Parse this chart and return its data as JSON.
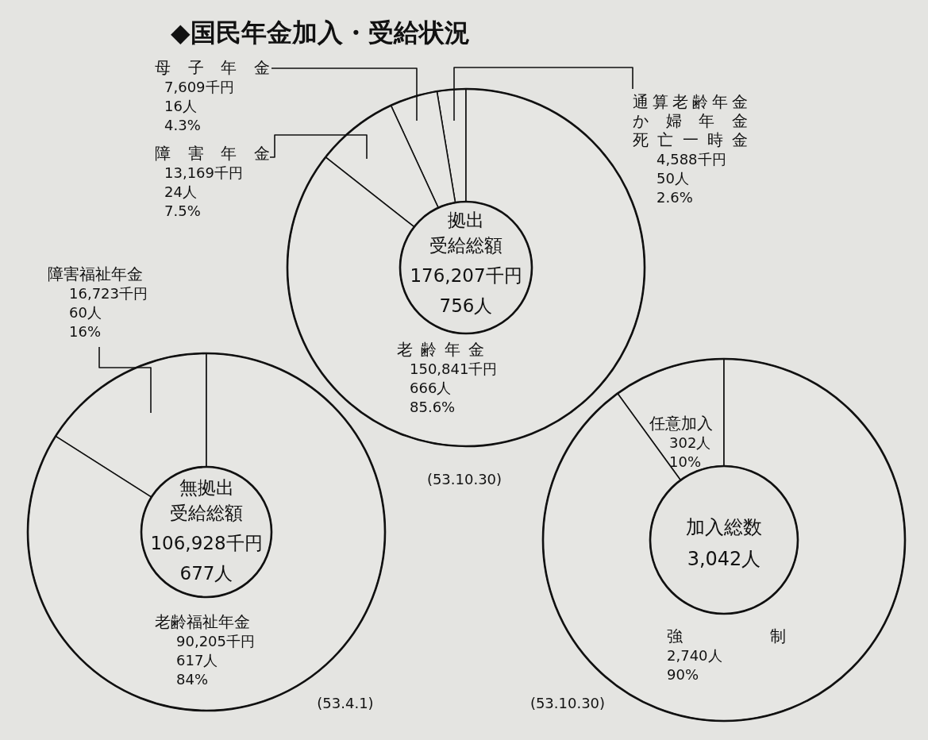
{
  "chart_data": [
    {
      "type": "donut",
      "title": "◆国民年金加入・受給状況",
      "categories": [
        "通算老齢年金か婦年金死亡一時金",
        "母子年金",
        "障害年金",
        "老齢年金"
      ],
      "values": [
        2.6,
        4.3,
        7.5,
        85.6
      ],
      "colors": [
        "#e6e6e3",
        "#e6e6e3",
        "#e6e6e3",
        "#e6e6e3"
      ],
      "value_labels": [
        "4,588千円\n50人\n2.6%",
        "7,609千円\n16人\n4.3%",
        "13,169千円\n24人\n7.5%",
        "150,841千円\n666人\n85.6%"
      ],
      "annotations": [
        "拠出",
        "受給総額",
        "176,207千円",
        "756人",
        "(53.10.30)"
      ]
    },
    {
      "type": "donut",
      "categories": [
        "障害福祉年金",
        "老齢福祉年金"
      ],
      "values": [
        16,
        84
      ],
      "colors": [
        "#e6e6e3",
        "#e6e6e3"
      ],
      "value_labels": [
        "16,723千円\n60人\n16%",
        "90,205千円\n617人\n84%"
      ],
      "annotations": [
        "無拠出",
        "受給総額",
        "106,928千円",
        "677人",
        "(53.4.1)"
      ]
    },
    {
      "type": "donut",
      "categories": [
        "任意加入",
        "強制"
      ],
      "values": [
        10,
        90
      ],
      "colors": [
        "#e6e6e3",
        "#e6e6e3"
      ],
      "value_labels": [
        "302人\n10%",
        "2,740人\n90%"
      ],
      "annotations": [
        "加入総数",
        "3,042人",
        "(53.10.30)"
      ]
    }
  ]
}
